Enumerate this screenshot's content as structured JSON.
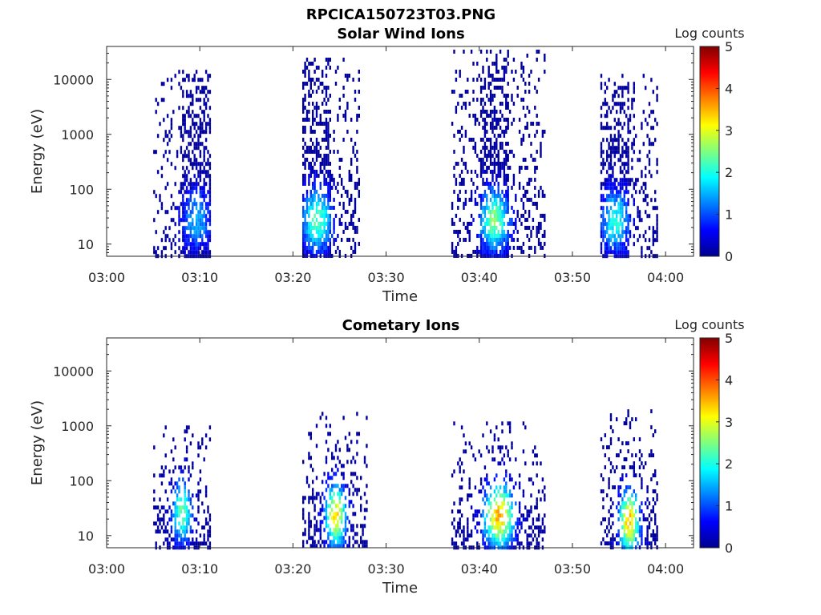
{
  "figure": {
    "title": "RPCICA150723T03.PNG"
  },
  "chart_data": [
    {
      "type": "heatmap",
      "title": "Solar Wind Ions",
      "xlabel": "Time",
      "ylabel": "Energy (eV)",
      "x_ticks": [
        "03:00",
        "03:10",
        "03:20",
        "03:30",
        "03:40",
        "03:50",
        "04:00"
      ],
      "xlim": [
        "03:00",
        "04:03"
      ],
      "y_scale": "log",
      "y_ticks": [
        "10",
        "100",
        "1000",
        "10000"
      ],
      "ylim": [
        6,
        40000
      ],
      "colorbar": {
        "label": "Log counts",
        "range": [
          0,
          5
        ],
        "ticks": [
          "0",
          "1",
          "2",
          "3",
          "4",
          "5"
        ],
        "colormap": "jet"
      },
      "bursts": [
        {
          "start": "03:05",
          "end": "03:11",
          "core_start": "03:08",
          "core_end": "03:11",
          "min_energy": 6,
          "max_energy": 15000,
          "peak_energy": 30,
          "peak_log_counts": 1.5
        },
        {
          "start": "03:21",
          "end": "03:27",
          "core_start": "03:21",
          "core_end": "03:24",
          "min_energy": 6,
          "max_energy": 25000,
          "peak_energy": 30,
          "peak_log_counts": 2.3
        },
        {
          "start": "03:37",
          "end": "03:47",
          "core_start": "03:40",
          "core_end": "03:43",
          "min_energy": 6,
          "max_energy": 35000,
          "peak_energy": 30,
          "peak_log_counts": 2.5
        },
        {
          "start": "03:53",
          "end": "03:59",
          "core_start": "03:53",
          "core_end": "03:56",
          "min_energy": 6,
          "max_energy": 15000,
          "peak_energy": 30,
          "peak_log_counts": 2.0
        }
      ]
    },
    {
      "type": "heatmap",
      "title": "Cometary Ions",
      "xlabel": "Time",
      "ylabel": "Energy (eV)",
      "x_ticks": [
        "03:00",
        "03:10",
        "03:20",
        "03:30",
        "03:40",
        "03:50",
        "04:00"
      ],
      "xlim": [
        "03:00",
        "04:03"
      ],
      "y_scale": "log",
      "y_ticks": [
        "10",
        "100",
        "1000",
        "10000"
      ],
      "ylim": [
        6,
        40000
      ],
      "colorbar": {
        "label": "Log counts",
        "range": [
          0,
          5
        ],
        "ticks": [
          "0",
          "1",
          "2",
          "3",
          "4",
          "5"
        ],
        "colormap": "jet"
      },
      "bursts": [
        {
          "start": "03:05",
          "end": "03:11",
          "min_energy": 6,
          "max_energy": 1200,
          "peak_energy": 30,
          "peak_log_counts": 2.4
        },
        {
          "start": "03:21",
          "end": "03:28",
          "min_energy": 6,
          "max_energy": 1800,
          "peak_energy": 25,
          "peak_log_counts": 3.3
        },
        {
          "start": "03:37",
          "end": "03:47",
          "min_energy": 6,
          "max_energy": 1200,
          "peak_energy": 25,
          "peak_log_counts": 3.5
        },
        {
          "start": "03:53",
          "end": "03:59",
          "min_energy": 6,
          "max_energy": 2000,
          "peak_energy": 20,
          "peak_log_counts": 3.5
        }
      ]
    }
  ]
}
